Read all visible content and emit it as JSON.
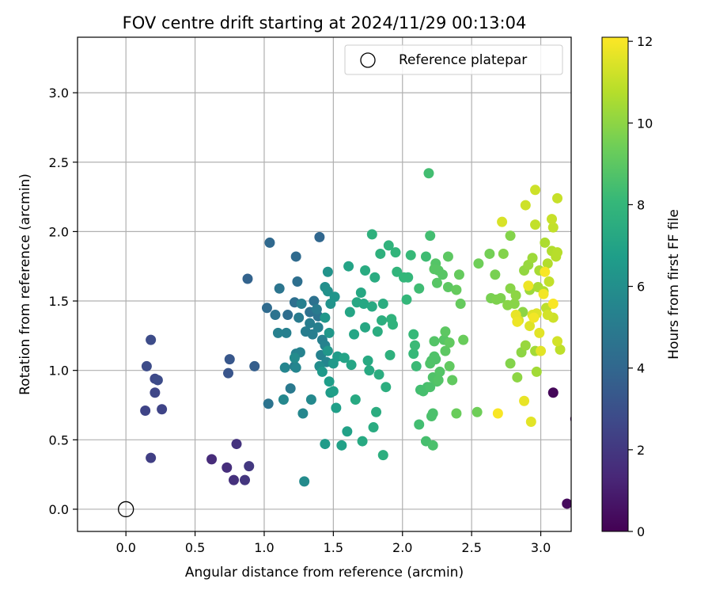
{
  "chart_data": {
    "type": "scatter",
    "title": "FOV centre drift starting at 2024/11/29 00:13:04",
    "xlabel": "Angular distance from reference (arcmin)",
    "ylabel": "Rotation from reference (arcmin)",
    "xlim": [
      -0.35,
      3.22
    ],
    "ylim": [
      -0.16,
      3.4
    ],
    "xticks": [
      "0.0",
      "0.5",
      "1.0",
      "1.5",
      "2.0",
      "2.5",
      "3.0"
    ],
    "yticks": [
      "0.0",
      "0.5",
      "1.0",
      "1.5",
      "2.0",
      "2.5",
      "3.0"
    ],
    "grid": true,
    "legend": {
      "placement": "top-right",
      "entries": [
        "Reference platepar"
      ]
    },
    "reference_point": {
      "x": 0.0,
      "y": 0.0
    },
    "colorbar": {
      "label": "Hours from first FF file",
      "range": [
        0,
        12.1
      ],
      "ticks": [
        "0",
        "2",
        "4",
        "6",
        "8",
        "10",
        "12"
      ],
      "colormap": [
        "#440154",
        "#482878",
        "#3e4989",
        "#31688e",
        "#26828e",
        "#1f9e89",
        "#35b779",
        "#6ece58",
        "#b5de2b",
        "#fde725"
      ]
    },
    "points": [
      [
        3.09,
        0.84,
        0.2
      ],
      [
        3.19,
        0.04,
        0.3
      ],
      [
        3.25,
        0.65,
        0.5
      ],
      [
        0.62,
        0.36,
        1.5
      ],
      [
        0.73,
        0.3,
        1.6
      ],
      [
        0.78,
        0.21,
        1.7
      ],
      [
        0.8,
        0.47,
        1.8
      ],
      [
        0.86,
        0.21,
        1.9
      ],
      [
        0.89,
        0.31,
        2.0
      ],
      [
        0.18,
        0.37,
        2.3
      ],
      [
        0.14,
        0.71,
        2.5
      ],
      [
        0.26,
        0.72,
        2.5
      ],
      [
        0.21,
        0.84,
        2.6
      ],
      [
        0.21,
        0.94,
        2.7
      ],
      [
        0.23,
        0.93,
        2.8
      ],
      [
        0.15,
        1.03,
        2.8
      ],
      [
        0.18,
        1.22,
        2.8
      ],
      [
        0.74,
        0.98,
        3.2
      ],
      [
        0.75,
        1.08,
        3.3
      ],
      [
        0.93,
        1.03,
        3.6
      ],
      [
        0.88,
        1.66,
        3.8
      ],
      [
        1.4,
        1.96,
        4.0
      ],
      [
        1.04,
        1.92,
        4.1
      ],
      [
        1.23,
        1.82,
        4.2
      ],
      [
        1.02,
        1.45,
        4.2
      ],
      [
        1.17,
        1.4,
        4.3
      ],
      [
        1.22,
        1.49,
        4.4
      ],
      [
        1.24,
        1.64,
        4.4
      ],
      [
        1.36,
        1.5,
        4.5
      ],
      [
        1.33,
        1.42,
        4.5
      ],
      [
        1.39,
        1.39,
        4.6
      ],
      [
        1.08,
        1.4,
        4.6
      ],
      [
        1.03,
        0.76,
        4.6
      ],
      [
        1.11,
        1.59,
        4.7
      ],
      [
        1.19,
        0.87,
        4.9
      ],
      [
        1.22,
        1.03,
        5.0
      ],
      [
        1.25,
        1.38,
        5.0
      ],
      [
        1.38,
        1.44,
        5.0
      ],
      [
        1.3,
        1.28,
        5.1
      ],
      [
        1.33,
        1.34,
        5.1
      ],
      [
        1.35,
        1.26,
        5.1
      ],
      [
        1.39,
        1.31,
        5.2
      ],
      [
        1.16,
        1.27,
        5.2
      ],
      [
        1.27,
        1.48,
        5.2
      ],
      [
        1.1,
        1.27,
        5.3
      ],
      [
        1.23,
        1.12,
        5.3
      ],
      [
        1.42,
        1.22,
        5.3
      ],
      [
        1.26,
        1.13,
        5.4
      ],
      [
        1.44,
        1.18,
        5.4
      ],
      [
        1.41,
        1.11,
        5.4
      ],
      [
        1.45,
        1.06,
        5.5
      ],
      [
        1.23,
        1.02,
        5.5
      ],
      [
        1.15,
        1.02,
        5.5
      ],
      [
        1.14,
        0.79,
        5.6
      ],
      [
        1.28,
        0.69,
        5.6
      ],
      [
        1.34,
        0.79,
        5.7
      ],
      [
        1.29,
        0.2,
        5.8
      ],
      [
        1.22,
        1.09,
        5.8
      ],
      [
        1.4,
        1.03,
        5.9
      ],
      [
        1.44,
        1.6,
        6.0
      ],
      [
        1.46,
        1.57,
        6.1
      ],
      [
        1.46,
        1.71,
        6.2
      ],
      [
        1.48,
        1.48,
        6.2
      ],
      [
        1.51,
        1.53,
        6.3
      ],
      [
        1.47,
        1.27,
        6.4
      ],
      [
        1.44,
        1.38,
        6.4
      ],
      [
        1.46,
        1.14,
        6.4
      ],
      [
        1.42,
        0.99,
        6.5
      ],
      [
        1.5,
        1.05,
        6.5
      ],
      [
        1.53,
        1.1,
        6.6
      ],
      [
        1.44,
        0.47,
        6.6
      ],
      [
        1.48,
        0.84,
        6.6
      ],
      [
        1.47,
        0.92,
        6.7
      ],
      [
        1.5,
        0.85,
        6.8
      ],
      [
        1.52,
        0.73,
        6.8
      ],
      [
        1.56,
        0.46,
        6.9
      ],
      [
        1.6,
        0.56,
        6.9
      ],
      [
        1.61,
        1.75,
        7.0
      ],
      [
        1.58,
        1.09,
        7.0
      ],
      [
        1.63,
        1.04,
        7.1
      ],
      [
        1.62,
        1.42,
        7.1
      ],
      [
        1.65,
        1.26,
        7.1
      ],
      [
        1.67,
        1.49,
        7.2
      ],
      [
        1.7,
        1.56,
        7.2
      ],
      [
        1.72,
        1.48,
        7.2
      ],
      [
        1.73,
        1.31,
        7.2
      ],
      [
        1.66,
        0.79,
        7.3
      ],
      [
        1.71,
        0.49,
        7.3
      ],
      [
        1.75,
        1.07,
        7.3
      ],
      [
        1.76,
        1.0,
        7.3
      ],
      [
        1.78,
        1.46,
        7.3
      ],
      [
        1.73,
        1.72,
        7.4
      ],
      [
        1.79,
        0.59,
        7.4
      ],
      [
        1.8,
        1.67,
        7.4
      ],
      [
        1.82,
        1.28,
        7.5
      ],
      [
        1.83,
        0.97,
        7.5
      ],
      [
        1.81,
        0.7,
        7.5
      ],
      [
        1.86,
        1.48,
        7.5
      ],
      [
        1.85,
        1.36,
        7.6
      ],
      [
        1.88,
        0.88,
        7.6
      ],
      [
        1.86,
        0.39,
        7.6
      ],
      [
        1.84,
        1.84,
        7.7
      ],
      [
        1.78,
        1.98,
        7.7
      ],
      [
        1.91,
        1.11,
        7.7
      ],
      [
        1.9,
        1.9,
        7.8
      ],
      [
        1.92,
        1.37,
        7.8
      ],
      [
        1.93,
        1.33,
        7.8
      ],
      [
        1.95,
        1.85,
        7.9
      ],
      [
        1.96,
        1.71,
        7.9
      ],
      [
        2.01,
        1.67,
        8.0
      ],
      [
        2.04,
        1.67,
        8.0
      ],
      [
        2.03,
        1.51,
        8.0
      ],
      [
        2.06,
        1.83,
        8.1
      ],
      [
        2.08,
        1.12,
        8.1
      ],
      [
        2.08,
        1.26,
        8.1
      ],
      [
        2.09,
        1.18,
        8.2
      ],
      [
        2.1,
        1.03,
        8.2
      ],
      [
        2.12,
        1.59,
        8.3
      ],
      [
        2.17,
        1.82,
        8.3
      ],
      [
        2.19,
        2.42,
        8.4
      ],
      [
        2.2,
        1.97,
        8.4
      ],
      [
        2.13,
        0.86,
        8.4
      ],
      [
        2.12,
        0.61,
        8.4
      ],
      [
        2.15,
        0.85,
        8.5
      ],
      [
        2.18,
        0.88,
        8.5
      ],
      [
        2.17,
        0.49,
        8.5
      ],
      [
        2.22,
        0.46,
        8.6
      ],
      [
        2.21,
        0.67,
        8.6
      ],
      [
        2.22,
        0.69,
        8.6
      ],
      [
        2.2,
        0.88,
        8.6
      ],
      [
        2.21,
        1.07,
        8.6
      ],
      [
        2.23,
        1.1,
        8.7
      ],
      [
        2.2,
        1.05,
        8.7
      ],
      [
        2.24,
        1.08,
        8.7
      ],
      [
        2.25,
        0.92,
        8.7
      ],
      [
        2.22,
        0.95,
        8.7
      ],
      [
        2.26,
        0.93,
        8.8
      ],
      [
        2.27,
        0.99,
        8.8
      ],
      [
        2.23,
        1.21,
        8.8
      ],
      [
        2.24,
        1.77,
        8.8
      ],
      [
        2.25,
        1.63,
        8.9
      ],
      [
        2.26,
        1.72,
        8.9
      ],
      [
        2.23,
        1.73,
        8.9
      ],
      [
        2.29,
        1.69,
        8.9
      ],
      [
        2.3,
        1.22,
        8.9
      ],
      [
        2.31,
        1.28,
        9.0
      ],
      [
        2.31,
        1.14,
        9.0
      ],
      [
        2.33,
        1.82,
        9.0
      ],
      [
        2.33,
        1.6,
        9.0
      ],
      [
        2.34,
        1.03,
        9.1
      ],
      [
        2.34,
        1.2,
        9.1
      ],
      [
        2.36,
        0.93,
        9.1
      ],
      [
        2.39,
        1.58,
        9.2
      ],
      [
        2.41,
        1.69,
        9.2
      ],
      [
        2.42,
        1.48,
        9.2
      ],
      [
        2.44,
        1.22,
        9.3
      ],
      [
        2.39,
        0.69,
        9.3
      ],
      [
        2.54,
        0.7,
        9.4
      ],
      [
        2.55,
        1.77,
        9.4
      ],
      [
        2.63,
        1.84,
        9.5
      ],
      [
        2.64,
        1.52,
        9.6
      ],
      [
        2.67,
        1.69,
        9.6
      ],
      [
        2.68,
        1.51,
        9.7
      ],
      [
        2.71,
        1.52,
        9.7
      ],
      [
        2.73,
        1.84,
        9.8
      ],
      [
        2.78,
        1.97,
        9.8
      ],
      [
        2.78,
        1.05,
        9.8
      ],
      [
        2.76,
        1.47,
        9.9
      ],
      [
        2.78,
        1.59,
        9.9
      ],
      [
        2.81,
        1.48,
        9.9
      ],
      [
        2.82,
        1.54,
        10.0
      ],
      [
        2.83,
        0.95,
        10.0
      ],
      [
        2.86,
        1.13,
        10.0
      ],
      [
        2.87,
        1.42,
        10.0
      ],
      [
        2.88,
        1.72,
        10.1
      ],
      [
        2.89,
        1.18,
        10.2
      ],
      [
        2.91,
        1.76,
        10.2
      ],
      [
        2.92,
        1.58,
        10.3
      ],
      [
        2.94,
        1.81,
        10.3
      ],
      [
        2.96,
        1.14,
        10.4
      ],
      [
        2.97,
        0.99,
        10.4
      ],
      [
        2.98,
        1.6,
        10.5
      ],
      [
        2.99,
        1.72,
        10.5
      ],
      [
        3.02,
        1.57,
        10.6
      ],
      [
        3.03,
        1.92,
        10.6
      ],
      [
        3.05,
        1.77,
        10.7
      ],
      [
        3.08,
        1.86,
        10.7
      ],
      [
        3.11,
        1.82,
        10.8
      ],
      [
        3.12,
        1.85,
        10.8
      ],
      [
        3.14,
        1.15,
        10.9
      ],
      [
        3.04,
        1.45,
        10.9
      ],
      [
        3.06,
        1.64,
        11.0
      ],
      [
        2.96,
        2.05,
        11.0
      ],
      [
        3.09,
        2.03,
        11.0
      ],
      [
        3.08,
        2.09,
        11.1
      ],
      [
        3.12,
        2.24,
        11.1
      ],
      [
        2.89,
        2.19,
        11.2
      ],
      [
        2.96,
        2.3,
        11.2
      ],
      [
        3.09,
        1.38,
        11.2
      ],
      [
        3.05,
        1.4,
        11.3
      ],
      [
        3.12,
        1.21,
        11.3
      ],
      [
        2.72,
        2.07,
        11.4
      ],
      [
        2.84,
        1.36,
        11.4
      ],
      [
        2.92,
        1.32,
        11.5
      ],
      [
        2.94,
        1.4,
        11.5
      ],
      [
        2.97,
        1.41,
        11.5
      ],
      [
        2.99,
        1.27,
        11.6
      ],
      [
        3.0,
        1.14,
        11.6
      ],
      [
        2.93,
        0.63,
        11.6
      ],
      [
        2.88,
        0.78,
        11.7
      ],
      [
        2.82,
        1.4,
        11.7
      ],
      [
        2.83,
        1.35,
        11.8
      ],
      [
        2.91,
        1.61,
        11.8
      ],
      [
        2.95,
        1.38,
        11.9
      ],
      [
        3.02,
        1.55,
        11.9
      ],
      [
        3.03,
        1.71,
        12.0
      ],
      [
        3.09,
        1.48,
        12.0
      ],
      [
        2.69,
        0.69,
        12.0
      ]
    ]
  }
}
